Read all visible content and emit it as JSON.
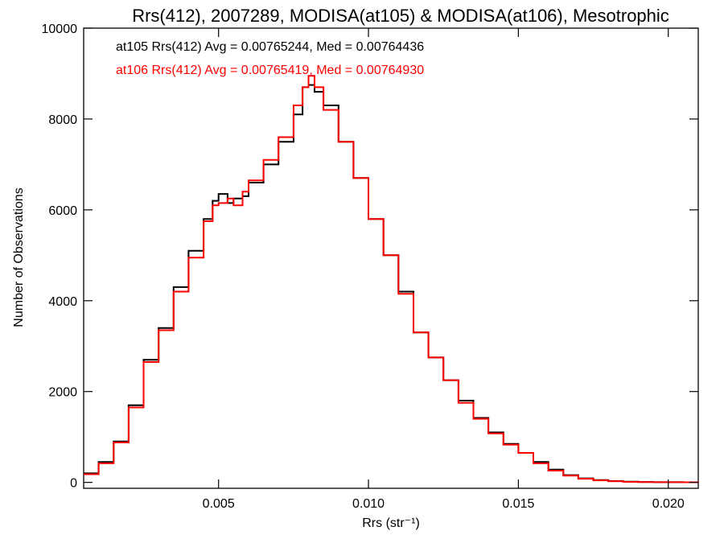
{
  "chart_data": {
    "type": "line",
    "title": "Rrs(412), 2007289, MODISA(at105) & MODISA(at106), Mesotrophic",
    "xlabel": "Rrs (str⁻¹)",
    "ylabel": "Number of Observations",
    "xlim": [
      0.0005,
      0.021
    ],
    "ylim": [
      -130,
      10000
    ],
    "xticks": [
      0.005,
      0.01,
      0.015,
      0.02
    ],
    "xtick_labels": [
      "0.005",
      "0.010",
      "0.015",
      "0.020"
    ],
    "yticks": [
      0,
      2000,
      4000,
      6000,
      8000,
      10000
    ],
    "ytick_labels": [
      "0",
      "2000",
      "4000",
      "6000",
      "8000",
      "10000"
    ],
    "line_style": "step",
    "grid": false,
    "annotations": [
      {
        "text": "at105 Rrs(412) Avg = 0.00765244, Med = 0.00764436",
        "color": "#000000"
      },
      {
        "text": "at106 Rrs(412) Avg = 0.00765419, Med = 0.00764930",
        "color": "#ff0000"
      }
    ],
    "series": [
      {
        "name": "at105",
        "color": "#000000",
        "x": [
          0.0005,
          0.001,
          0.0015,
          0.002,
          0.0025,
          0.003,
          0.0035,
          0.004,
          0.0045,
          0.0048,
          0.005,
          0.0053,
          0.0055,
          0.0058,
          0.006,
          0.0065,
          0.007,
          0.0075,
          0.0078,
          0.008,
          0.0082,
          0.0085,
          0.009,
          0.0095,
          0.01,
          0.0105,
          0.011,
          0.0115,
          0.012,
          0.0125,
          0.013,
          0.0135,
          0.014,
          0.0145,
          0.015,
          0.0155,
          0.016,
          0.0165,
          0.017,
          0.0175,
          0.018,
          0.0185,
          0.019,
          0.0195,
          0.02,
          0.0205,
          0.021
        ],
        "y": [
          200,
          450,
          900,
          1700,
          2700,
          3400,
          4300,
          5100,
          5800,
          6200,
          6350,
          6150,
          6250,
          6300,
          6600,
          7000,
          7500,
          8100,
          8700,
          8750,
          8600,
          8300,
          7500,
          6700,
          5800,
          5000,
          4200,
          3300,
          2750,
          2250,
          1800,
          1420,
          1100,
          850,
          650,
          450,
          280,
          160,
          90,
          50,
          30,
          15,
          10,
          5,
          5,
          3,
          0
        ]
      },
      {
        "name": "at106",
        "color": "#ff0000",
        "x": [
          0.0005,
          0.001,
          0.0015,
          0.002,
          0.0025,
          0.003,
          0.0035,
          0.004,
          0.0045,
          0.0048,
          0.005,
          0.0053,
          0.0055,
          0.0058,
          0.006,
          0.0065,
          0.007,
          0.0075,
          0.0078,
          0.008,
          0.0082,
          0.0085,
          0.009,
          0.0095,
          0.01,
          0.0105,
          0.011,
          0.0115,
          0.012,
          0.0125,
          0.013,
          0.0135,
          0.014,
          0.0145,
          0.015,
          0.0155,
          0.016,
          0.0165,
          0.017,
          0.0175,
          0.018,
          0.0185,
          0.019,
          0.0195,
          0.02,
          0.0205,
          0.021
        ],
        "y": [
          180,
          420,
          880,
          1650,
          2650,
          3350,
          4200,
          4950,
          5750,
          6100,
          6150,
          6250,
          6100,
          6400,
          6650,
          7100,
          7600,
          8300,
          8700,
          8950,
          8700,
          8200,
          7500,
          6700,
          5800,
          5000,
          4150,
          3300,
          2750,
          2250,
          1750,
          1400,
          1080,
          830,
          650,
          420,
          260,
          150,
          80,
          45,
          25,
          12,
          8,
          5,
          4,
          2,
          0
        ]
      }
    ]
  }
}
